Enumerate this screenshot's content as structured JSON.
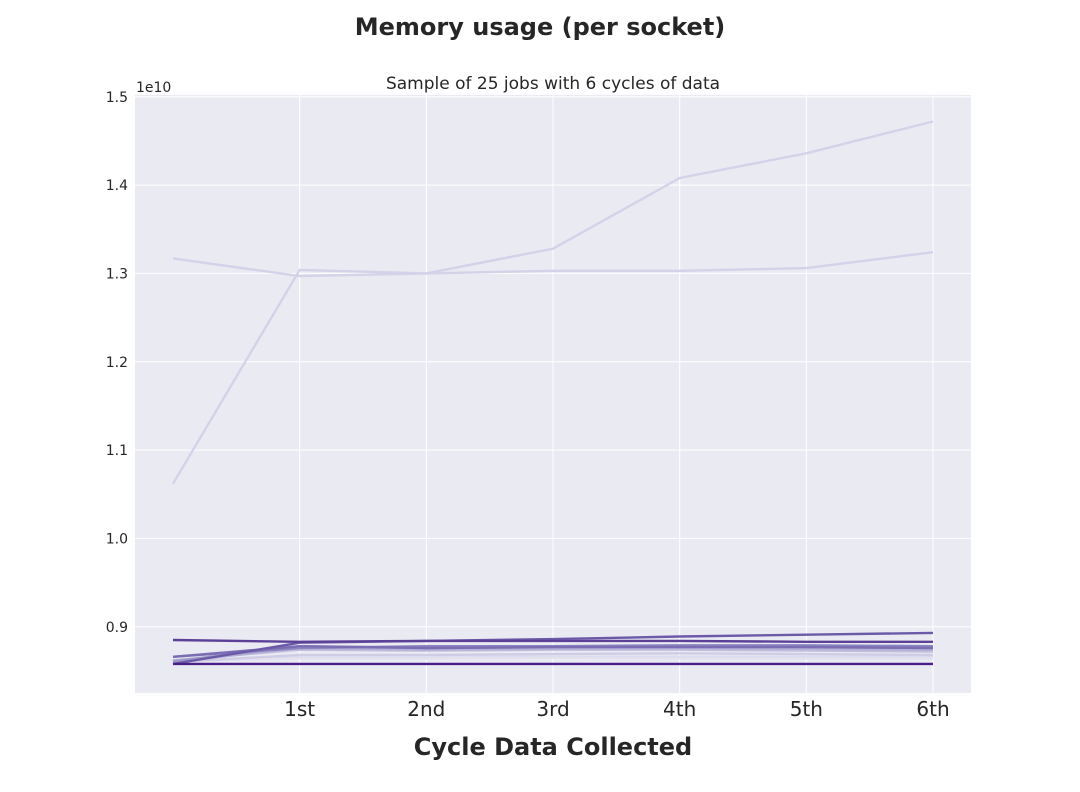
{
  "figure": {
    "title": "Memory usage (per socket)"
  },
  "chart_data": {
    "type": "line",
    "title": "Sample of 25 jobs with 6 cycles of data",
    "xlabel": "Cycle Data Collected",
    "ylabel": "",
    "y_offset_label": "1e10",
    "grid": true,
    "background": "#eaeaf2",
    "grid_color": "#ffffff",
    "x": [
      0,
      1,
      2,
      3,
      4,
      5,
      6
    ],
    "x_ticks": [
      1,
      2,
      3,
      4,
      5,
      6
    ],
    "x_tick_labels": [
      "1st",
      "2nd",
      "3rd",
      "4th",
      "5th",
      "6th"
    ],
    "xlim": [
      -0.3,
      6.3
    ],
    "ylim": [
      0.825,
      1.502
    ],
    "y_ticks": [
      0.9,
      1.0,
      1.1,
      1.2,
      1.3,
      1.4,
      1.5
    ],
    "y_tick_labels": [
      "0.9",
      "1.0",
      "1.1",
      "1.2",
      "1.3",
      "1.4",
      "1.5"
    ],
    "series": [
      {
        "color": "#d4d2e8",
        "values": [
          1.317,
          1.297,
          1.3,
          1.328,
          1.408,
          1.436,
          1.472
        ]
      },
      {
        "color": "#d4d2e8",
        "values": [
          1.062,
          1.304,
          1.3,
          1.303,
          1.303,
          1.306,
          1.324
        ]
      },
      {
        "color": "#dcdbeb",
        "values": [
          0.861,
          0.865,
          0.865,
          0.866,
          0.866,
          0.866,
          0.866
        ]
      },
      {
        "color": "#e2e1ef",
        "values": [
          0.862,
          0.864,
          0.864,
          0.865,
          0.864,
          0.864,
          0.864
        ]
      },
      {
        "color": "#cfcde6",
        "values": [
          0.86,
          0.868,
          0.868,
          0.869,
          0.87,
          0.869,
          0.868
        ]
      },
      {
        "color": "#c1bedd",
        "values": [
          0.862,
          0.874,
          0.873,
          0.874,
          0.874,
          0.873,
          0.872
        ]
      },
      {
        "color": "#b4b0d6",
        "values": [
          0.86,
          0.876,
          0.874,
          0.875,
          0.876,
          0.875,
          0.874
        ]
      },
      {
        "color": "#9d99c9",
        "values": [
          0.861,
          0.878,
          0.876,
          0.877,
          0.878,
          0.877,
          0.876
        ]
      },
      {
        "color": "#8a83bf",
        "values": [
          0.866,
          0.876,
          0.878,
          0.878,
          0.879,
          0.879,
          0.878
        ]
      },
      {
        "color": "#7a6db4",
        "values": [
          0.866,
          0.878,
          0.876,
          0.877,
          0.877,
          0.877,
          0.876
        ]
      },
      {
        "color": "#6c5aa8",
        "values": [
          0.858,
          0.882,
          0.884,
          0.886,
          0.889,
          0.891,
          0.893
        ]
      },
      {
        "color": "#5c4098",
        "values": [
          0.885,
          0.883,
          0.884,
          0.884,
          0.884,
          0.883,
          0.883
        ]
      },
      {
        "color": "#4a1f8a",
        "values": [
          0.858,
          0.858,
          0.858,
          0.858,
          0.858,
          0.858,
          0.858
        ]
      }
    ]
  }
}
